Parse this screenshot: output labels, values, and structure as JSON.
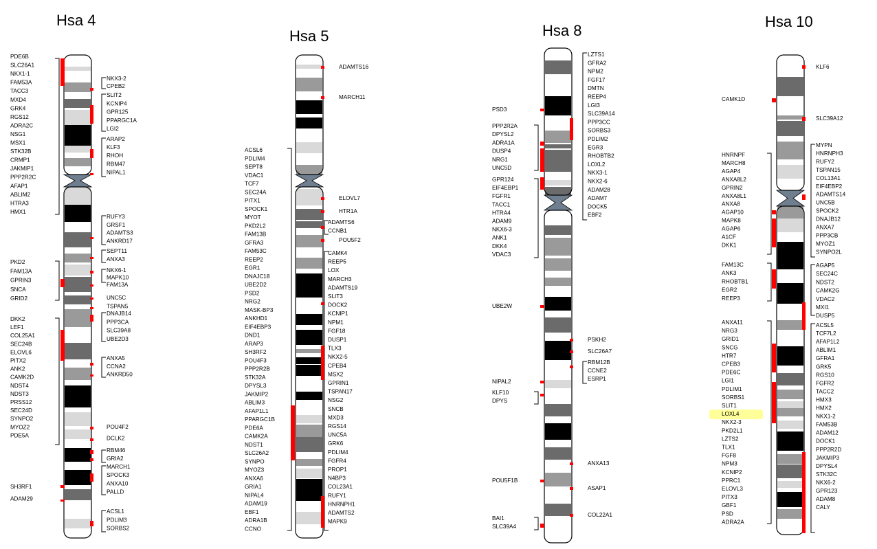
{
  "colors": {
    "marker": "#ff0000",
    "highlight": "#ffff99",
    "band_black": "#000000",
    "band_dark": "#6b6b6b",
    "band_mid": "#9a9a9a",
    "band_light": "#d9d9d9",
    "centromere": "#6f7f8f"
  },
  "chromosomes": [
    {
      "id": "hsa4",
      "title": "Hsa 4",
      "genes": [
        "PDE6B",
        "SLC26A1",
        "NKX1-1",
        "FAM53A",
        "TACC3",
        "MXD4",
        "GRK4",
        "RGS12",
        "ADRA2C",
        "NSG1",
        "MSX1",
        "STK32B",
        "CRMP1",
        "JAKMIP1",
        "PPP2R2C",
        "AFAP1",
        "ABLIM2",
        "HTRA3",
        "HMX1",
        "NKX3-2",
        "CPEB2",
        "SLIT2",
        "KCNIP4",
        "GPR125",
        "PPARGC1A",
        "LGI2",
        "ARAP2",
        "KLF3",
        "RHOH",
        "RBM47",
        "NIPAL1",
        "RUFY3",
        "GRSF1",
        "ADAMTS3",
        "ANKRD17",
        "SEPT11",
        "ANXA3",
        "PKD2",
        "FAM13A",
        "GPRIN3",
        "SNCA",
        "GRID2",
        "NKX6-1",
        "MAPK10",
        "FAM13A",
        "UNC5C",
        "TSPAN5",
        "DNAJB14",
        "PPP3CA",
        "SLC39A8",
        "UBE2D3",
        "DKK2",
        "LEF1",
        "COL25A1",
        "SEC24B",
        "ELOVL6",
        "PITX2",
        "ANK2",
        "CAMK2D",
        "NDST4",
        "NDST3",
        "PRSS12",
        "SEC24D",
        "SYNPO2",
        "MYOZ2",
        "PDE5A",
        "ANXA5",
        "CCNA2",
        "ANKRD50",
        "POU4F2",
        "DCLK2",
        "RBM46",
        "GRIA2",
        "MARCH1",
        "SPOCK3",
        "ANXA10",
        "PALLD",
        "SH3RF1",
        "ADAM29",
        "ACSL1",
        "PDLIM3",
        "SORBS2"
      ]
    },
    {
      "id": "hsa5",
      "title": "Hsa 5",
      "genes": [
        "ADAMTS16",
        "MARCH11",
        "ACSL6",
        "PDLIM4",
        "SEPT8",
        "VDAC1",
        "TCF7",
        "SEC24A",
        "PITX1",
        "SPOCK1",
        "MYOT",
        "PKD2L2",
        "FAM13B",
        "GFRA3",
        "FAM53C",
        "REEP2",
        "EGR1",
        "DNAJC18",
        "UBE2D2",
        "PSD2",
        "NRG2",
        "MASK-BP3",
        "ANKHD1",
        "EIF4EBP3",
        "DND1",
        "ARAP3",
        "SH3RF2",
        "POU4F3",
        "PPP2R2B",
        "STK32A",
        "DPYSL3",
        "JAKMIP2",
        "ABLIM3",
        "AFAP1L1",
        "PPARGC1B",
        "PDE6A",
        "CAMK2A",
        "NDST1",
        "SLC26A2",
        "SYNPO",
        "MYOZ3",
        "ANXA6",
        "GRIA1",
        "NIPAL4",
        "ADAM19",
        "EBF1",
        "ADRA1B",
        "CCNO",
        "ELOVL7",
        "HTR1A",
        "ADAMTS6",
        "CCNB1",
        "POU5F2",
        "CAMK4",
        "REEP5",
        "LOX",
        "MARCH3",
        "ADAMTS19",
        "SLIT3",
        "DOCK2",
        "KCNIP1",
        "NPM1",
        "FGF18",
        "DUSP1",
        "TLX3",
        "NKX2-5",
        "CPEB4",
        "MSX2",
        "GPRIN1",
        "TSPAN17",
        "NSG2",
        "SNCB",
        "MXD3",
        "RGS14",
        "UNC5A",
        "GRK6",
        "PDLIM4",
        "FGFR4",
        "PROP1",
        "N4BP3",
        "COL23A1",
        "RUFY1",
        "HNRNPH1",
        "ADAMTS2",
        "MAPK9"
      ]
    },
    {
      "id": "hsa8",
      "title": "Hsa 8",
      "genes": [
        "LZTS1",
        "GFRA2",
        "NPM2",
        "FGF17",
        "DMTN",
        "REEP4",
        "LGI3",
        "SLC39A14",
        "PPP3CC",
        "SORBS3",
        "PDLIM2",
        "EGR3",
        "RHOBTB2",
        "LOXL2",
        "NKX3-1",
        "NKX2-6",
        "ADAM28",
        "ADAM7",
        "DOCK5",
        "EBF2",
        "PSD3",
        "PPP2R2A",
        "DPYSL2",
        "ADRA1A",
        "DUSP4",
        "NRG1",
        "UNC5D",
        "GPR124",
        "EIF4EBP1",
        "FGFR1",
        "TACC1",
        "HTRA4",
        "ADAM9",
        "NKX6-3",
        "ANK1",
        "DKK4",
        "VDAC3",
        "UBE2W",
        "PSKH2",
        "SLC26A7",
        "RBM12B",
        "CCNE2",
        "ESRP1",
        "NIPAL2",
        "KLF10",
        "DPYS",
        "ANXA13",
        "POU5F1B",
        "ASAP1",
        "BAI1",
        "SLC39A4",
        "COL22A1"
      ]
    },
    {
      "id": "hsa10",
      "title": "Hsa 10",
      "genes": [
        "KLF6",
        "CAMK1D",
        "SLC39A12",
        "HNRNPF",
        "MARCH8",
        "AGAP4",
        "ANXA8L2",
        "GPRIN2",
        "ANXA8L1",
        "ANXA8",
        "AGAP10",
        "MAPK8",
        "AGAP6",
        "A1CF",
        "DKK1",
        "MYPN",
        "HNRNPH3",
        "RUFY2",
        "TSPAN15",
        "COL13A1",
        "EIF4EBP2",
        "ADAMTS14",
        "UNC5B",
        "SPOCK2",
        "DNAJB12",
        "ANXA7",
        "PPP3CB",
        "MYOZ1",
        "SYNPO2L",
        "FAM13C",
        "ANK3",
        "RHOBTB1",
        "EGR2",
        "REEP3",
        "AGAP5",
        "SEC24C",
        "NDST2",
        "CAMK2G",
        "VDAC2",
        "MXI1",
        "DUSP5",
        "ANXA11",
        "NRG3",
        "GRID1",
        "SNCG",
        "HTR7",
        "CPEB3",
        "PDE6C",
        "LGI1",
        "PDLIM1",
        "SORBS1",
        "SLIT1",
        "LOXL4",
        "NKX2-3",
        "PKD2L1",
        "LZTS2",
        "TLX1",
        "FGF8",
        "NPM3",
        "KCNIP2",
        "PPRC1",
        "ELOVL3",
        "PITX3",
        "GBF1",
        "PSD",
        "ADRA2A",
        "ACSL5",
        "TCF7L2",
        "AFAP1L2",
        "ABLIM1",
        "GFRA1",
        "GRK5",
        "RGS10",
        "FGFR2",
        "TACC2",
        "HMX3",
        "HMX2",
        "NKX1-2",
        "FAM53B",
        "ADAM12",
        "DOCK1",
        "PPP2R2D",
        "JAKMIP3",
        "DPYSL4",
        "STK32C",
        "NKX6-2",
        "GPR123",
        "ADAM8",
        "CALY"
      ]
    }
  ]
}
